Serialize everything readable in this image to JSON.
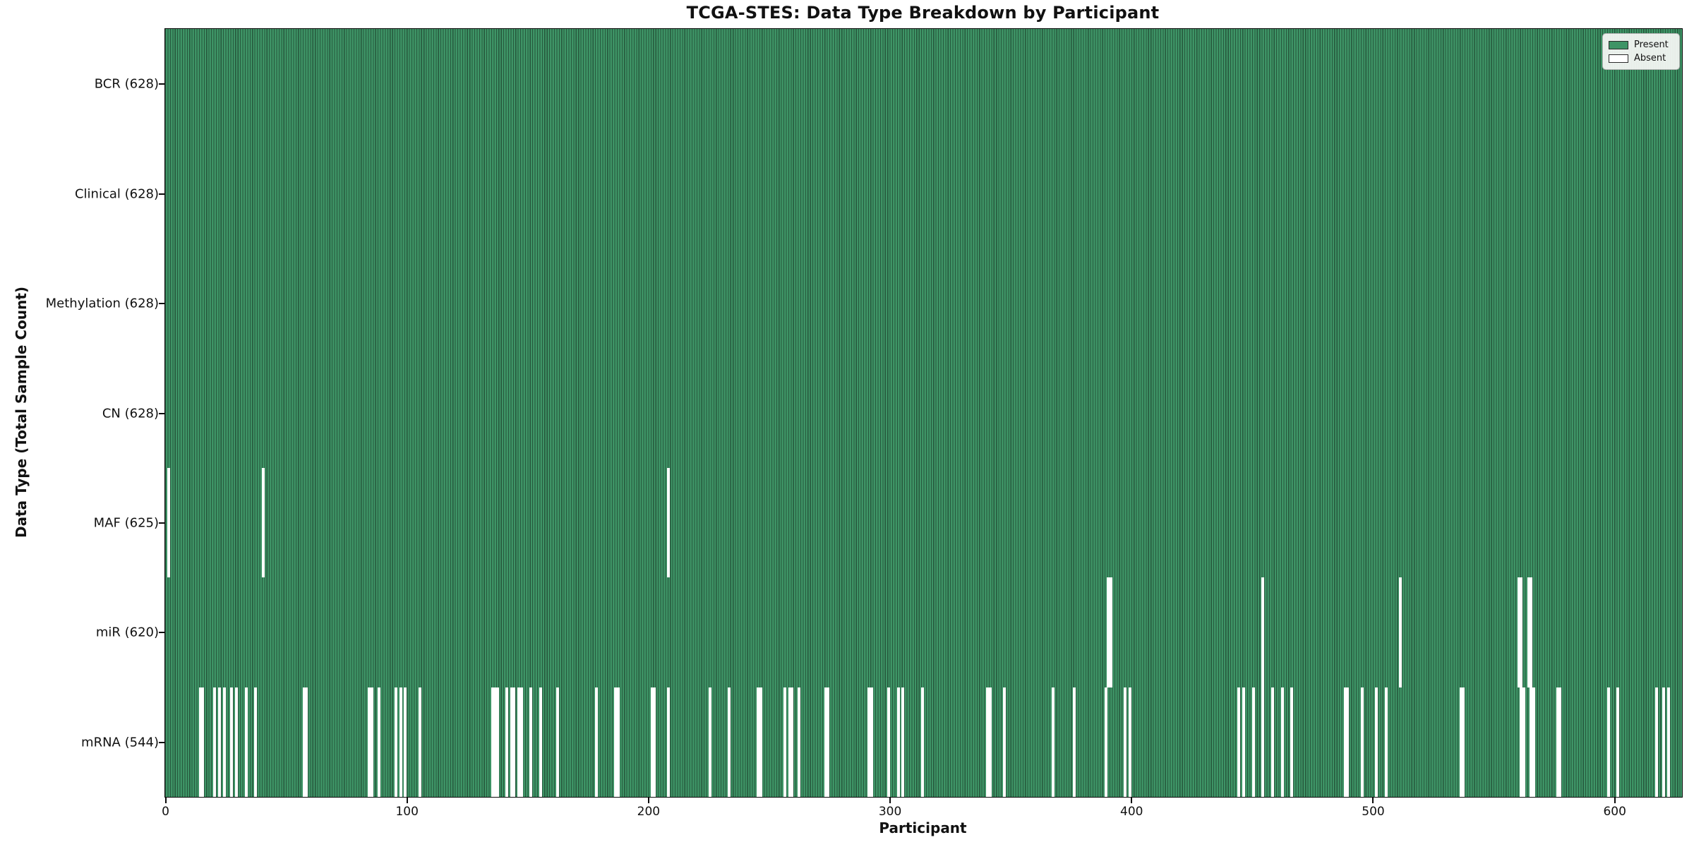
{
  "chart_data": {
    "type": "heatmap",
    "title": "TCGA-STES: Data Type Breakdown by Participant",
    "xlabel": "Participant",
    "ylabel": "Data Type (Total Sample Count)",
    "n_participants": 628,
    "x_ticks": [
      0,
      100,
      200,
      300,
      400,
      500,
      600
    ],
    "legend": [
      {
        "label": "Present",
        "color": "#3e9466"
      },
      {
        "label": "Absent",
        "color": "#ffffff"
      }
    ],
    "legend_position": "upper right",
    "colors": {
      "present_fill": "#3e9466",
      "bar_edge": "#26573c",
      "absent_fill": "#ffffff",
      "row_divider": "#1a1a1a",
      "spine": "#0a0a0a"
    },
    "rows": [
      {
        "name": "BCR",
        "label": "BCR (628)",
        "present_count": 628,
        "absent_participants": []
      },
      {
        "name": "Clinical",
        "label": "Clinical (628)",
        "present_count": 628,
        "absent_participants": []
      },
      {
        "name": "Methylation",
        "label": "Methylation (628)",
        "present_count": 628,
        "absent_participants": []
      },
      {
        "name": "CN",
        "label": "CN (628)",
        "present_count": 628,
        "absent_participants": []
      },
      {
        "name": "MAF",
        "label": "MAF (625)",
        "present_count": 625,
        "absent_participants": [
          1,
          40,
          208
        ]
      },
      {
        "name": "miR",
        "label": "miR (620)",
        "present_count": 620,
        "absent_participants": [
          390,
          391,
          454,
          511,
          560,
          561,
          564,
          565
        ]
      },
      {
        "name": "mRNA",
        "label": "mRNA (544)",
        "present_count": 544,
        "absent_participants": [
          14,
          15,
          20,
          22,
          24,
          27,
          29,
          33,
          37,
          57,
          58,
          84,
          85,
          88,
          95,
          97,
          99,
          105,
          135,
          136,
          137,
          141,
          143,
          144,
          146,
          147,
          151,
          155,
          162,
          178,
          186,
          187,
          201,
          202,
          208,
          225,
          233,
          245,
          246,
          256,
          258,
          259,
          262,
          273,
          274,
          291,
          292,
          299,
          303,
          305,
          313,
          340,
          341,
          347,
          367,
          376,
          389,
          397,
          399,
          444,
          446,
          450,
          454,
          458,
          462,
          466,
          488,
          489,
          495,
          501,
          505,
          536,
          537,
          561,
          562,
          565,
          566,
          576,
          577,
          597,
          601,
          617,
          620,
          622
        ]
      }
    ]
  }
}
